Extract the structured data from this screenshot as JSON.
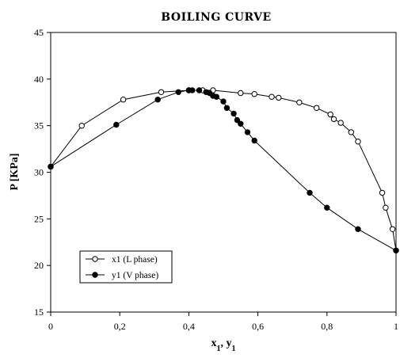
{
  "chart_data": {
    "type": "scatter",
    "title": "BOILING CURVE",
    "xlabel": {
      "main": "x",
      "sub1": "1",
      "sep": ", y",
      "sub2": "1"
    },
    "ylabel": "P [KPa]",
    "xlim": [
      0,
      1
    ],
    "ylim": [
      15,
      45
    ],
    "xticks": [
      0,
      0.2,
      0.4,
      0.6,
      0.8,
      1
    ],
    "xtick_labels": [
      "0",
      "0,2",
      "0,4",
      "0,6",
      "0,8",
      "1"
    ],
    "yticks": [
      15,
      20,
      25,
      30,
      35,
      40,
      45
    ],
    "ytick_labels": [
      "15",
      "20",
      "25",
      "30",
      "35",
      "40",
      "45"
    ],
    "grid": false,
    "legend_position": "bottom-left",
    "series": [
      {
        "name": "x1 (L phase)",
        "marker": "open-circle",
        "color": "#000000",
        "x": [
          0.0,
          0.09,
          0.21,
          0.32,
          0.4,
          0.44,
          0.47,
          0.55,
          0.59,
          0.64,
          0.66,
          0.72,
          0.77,
          0.81,
          0.82,
          0.84,
          0.87,
          0.89,
          0.96,
          0.97,
          0.99,
          1.0
        ],
        "y": [
          30.6,
          35.0,
          37.8,
          38.6,
          38.8,
          38.8,
          38.8,
          38.5,
          38.4,
          38.1,
          38.0,
          37.5,
          36.9,
          36.2,
          35.7,
          35.3,
          34.3,
          33.3,
          27.8,
          26.2,
          23.9,
          21.6
        ]
      },
      {
        "name": "y1 (V phase)",
        "marker": "filled-circle",
        "color": "#000000",
        "x": [
          0.0,
          0.19,
          0.31,
          0.37,
          0.4,
          0.41,
          0.43,
          0.45,
          0.46,
          0.47,
          0.48,
          0.5,
          0.51,
          0.53,
          0.54,
          0.55,
          0.57,
          0.59,
          0.75,
          0.8,
          0.89,
          1.0
        ],
        "y": [
          30.6,
          35.1,
          37.8,
          38.6,
          38.8,
          38.8,
          38.8,
          38.6,
          38.5,
          38.2,
          38.1,
          37.6,
          36.9,
          36.3,
          35.6,
          35.2,
          34.3,
          33.4,
          27.8,
          26.2,
          23.9,
          21.6
        ]
      }
    ]
  }
}
